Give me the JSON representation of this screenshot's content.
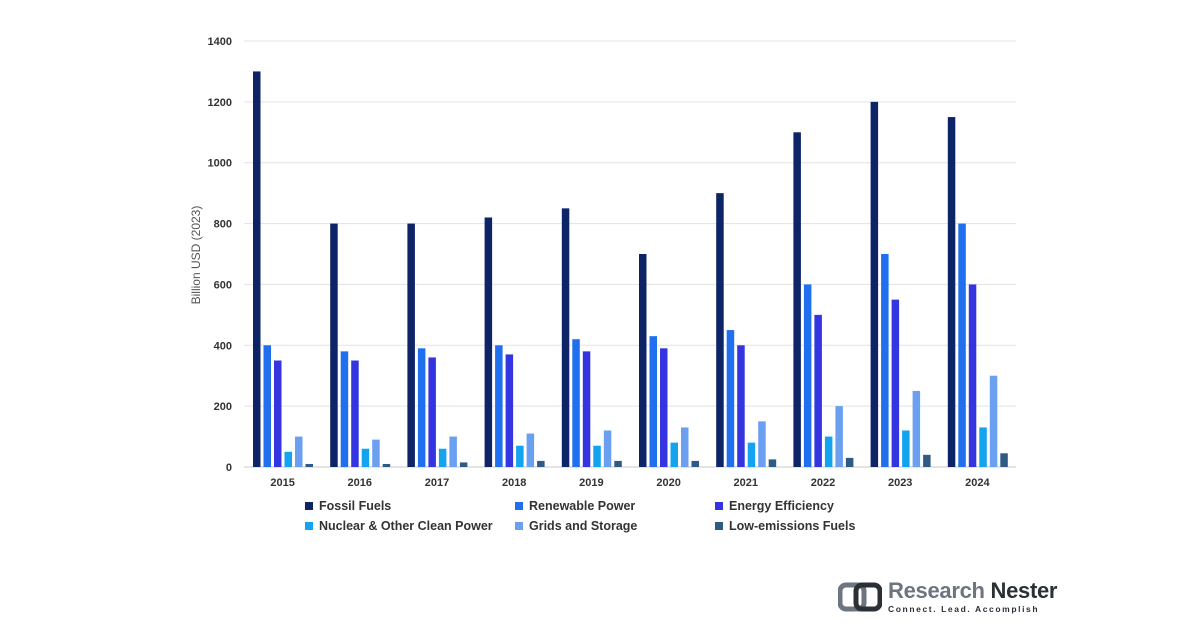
{
  "chart_data": {
    "type": "bar",
    "categories": [
      "2015",
      "2016",
      "2017",
      "2018",
      "2019",
      "2020",
      "2021",
      "2022",
      "2023",
      "2024"
    ],
    "series": [
      {
        "name": "Fossil Fuels",
        "color": "#0d2466",
        "values": [
          1300,
          800,
          800,
          820,
          850,
          700,
          900,
          1100,
          1200,
          1150
        ]
      },
      {
        "name": "Renewable Power",
        "color": "#1f6fef",
        "values": [
          400,
          380,
          390,
          400,
          420,
          430,
          450,
          600,
          700,
          800
        ]
      },
      {
        "name": "Energy Efficiency",
        "color": "#3434e0",
        "values": [
          350,
          350,
          360,
          370,
          380,
          390,
          400,
          500,
          550,
          600
        ]
      },
      {
        "name": "Nuclear & Other Clean Power",
        "color": "#14a3ef",
        "values": [
          50,
          60,
          60,
          70,
          70,
          80,
          80,
          100,
          120,
          130
        ]
      },
      {
        "name": "Grids and Storage",
        "color": "#6b9ff0",
        "values": [
          100,
          90,
          100,
          110,
          120,
          130,
          150,
          200,
          250,
          300
        ]
      },
      {
        "name": "Low-emissions Fuels",
        "color": "#2f5a86",
        "values": [
          10,
          10,
          15,
          20,
          20,
          20,
          25,
          30,
          40,
          45
        ]
      }
    ],
    "ylabel": "Billion USD (2023)",
    "xlabel": "",
    "ylim": [
      0,
      1400
    ],
    "yticks": [
      "0",
      "200",
      "400",
      "600",
      "800",
      "1000",
      "1200",
      "1400"
    ],
    "grid": true,
    "legend_position": "bottom"
  },
  "brand": {
    "name_part1": "Research",
    "name_part2": "Nester",
    "tagline": "Connect. Lead. Accomplish"
  }
}
